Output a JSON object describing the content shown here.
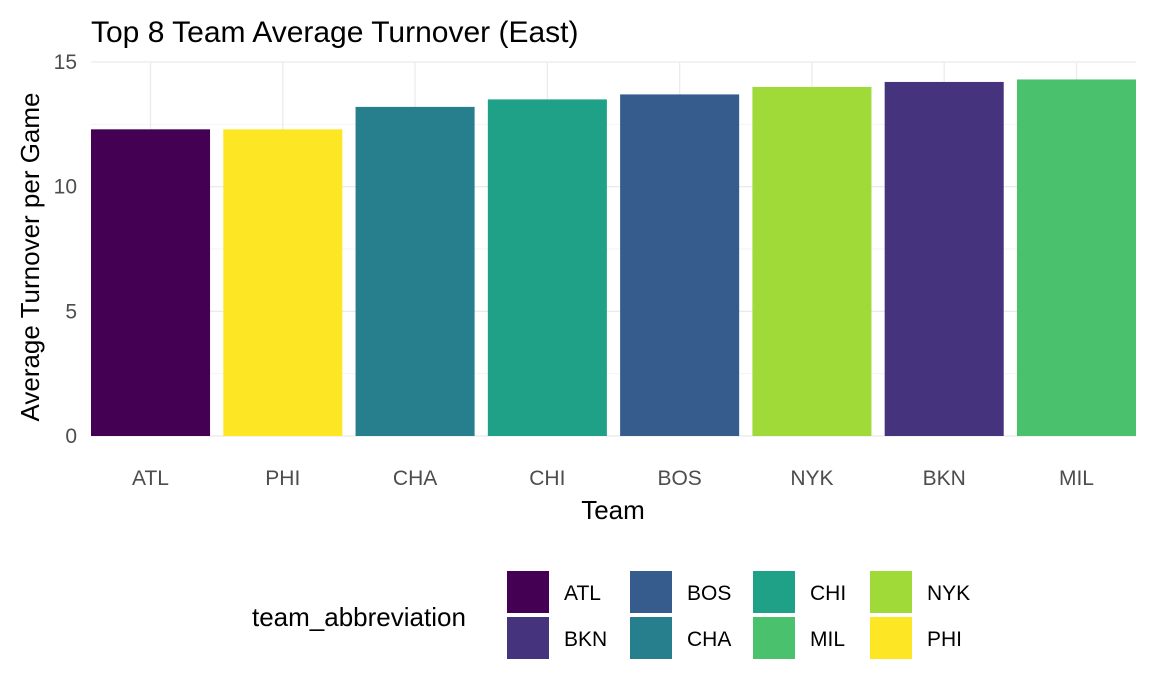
{
  "chart_data": {
    "type": "bar",
    "title": "Top 8 Team Average Turnover (East)",
    "xlabel": "Team",
    "ylabel": "Average Turnover per Game",
    "categories": [
      "ATL",
      "PHI",
      "CHA",
      "CHI",
      "BOS",
      "NYK",
      "BKN",
      "MIL"
    ],
    "values": [
      12.3,
      12.3,
      13.2,
      13.5,
      13.7,
      14.0,
      14.2,
      14.3
    ],
    "colors": [
      "#440154",
      "#FDE725",
      "#277F8E",
      "#1FA187",
      "#365C8D",
      "#A0DA39",
      "#46337E",
      "#4AC16D"
    ],
    "ylim": [
      0,
      15
    ],
    "yticks": [
      "0",
      "5",
      "10",
      "15"
    ],
    "grid": true,
    "legend": {
      "title": "team_abbreviation",
      "position": "bottom",
      "items": [
        {
          "label": "ATL",
          "color": "#440154"
        },
        {
          "label": "BKN",
          "color": "#46337E"
        },
        {
          "label": "BOS",
          "color": "#365C8D"
        },
        {
          "label": "CHA",
          "color": "#277F8E"
        },
        {
          "label": "CHI",
          "color": "#1FA187"
        },
        {
          "label": "MIL",
          "color": "#4AC16D"
        },
        {
          "label": "NYK",
          "color": "#A0DA39"
        },
        {
          "label": "PHI",
          "color": "#FDE725"
        }
      ]
    }
  }
}
